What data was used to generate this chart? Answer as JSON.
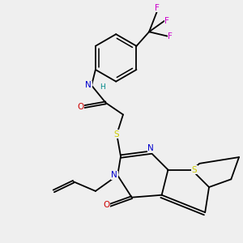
{
  "background_color": "#efefef",
  "figsize": [
    3.0,
    3.0
  ],
  "dpi": 100,
  "colors": {
    "N": "#0000cc",
    "O": "#cc0000",
    "S": "#cccc00",
    "F": "#cc00cc",
    "C": "#000000",
    "H": "#008888",
    "bond": "#000000"
  },
  "lw": 1.3,
  "fs": 7.5
}
